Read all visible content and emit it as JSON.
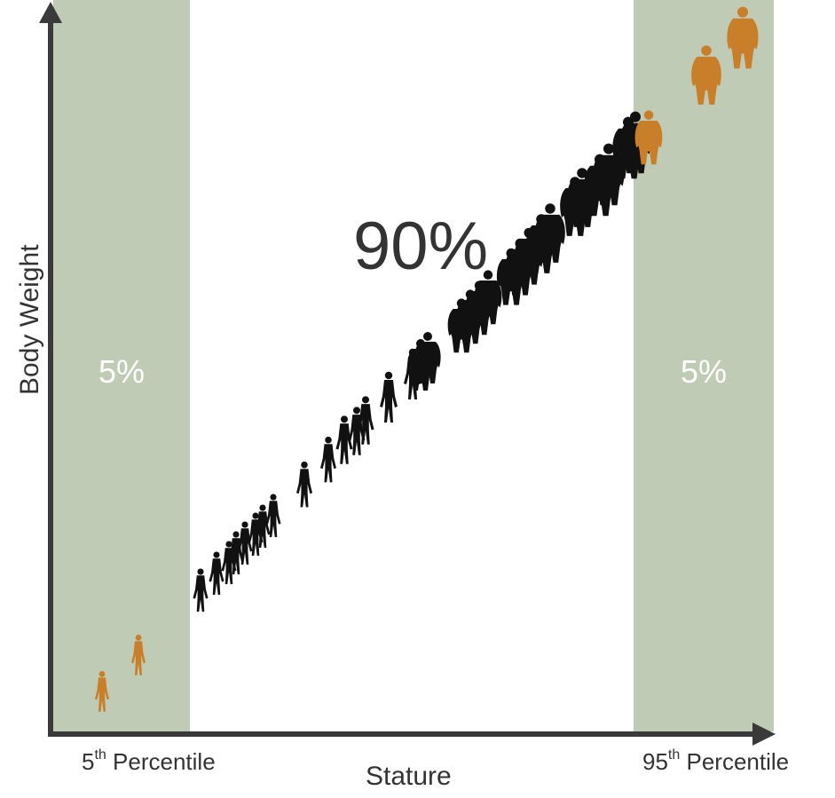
{
  "labels": {
    "y_axis": "Body Weight",
    "x_axis": "Stature",
    "left_percentile_num": "5",
    "left_percentile_sup": "th",
    "left_percentile_word": " Percentile",
    "right_percentile_num": "95",
    "right_percentile_sup": "th",
    "right_percentile_word": " Percentile",
    "left_band_pct": "5%",
    "right_band_pct": "5%",
    "middle_pct": "90%"
  },
  "colors": {
    "band": "#bfcbb4",
    "axis": "#3a3a3a",
    "figure_middle": "#111111",
    "figure_outlier": "#c97e2a",
    "text": "#333333"
  },
  "icons": {
    "figure": "human-silhouette-icon"
  }
}
